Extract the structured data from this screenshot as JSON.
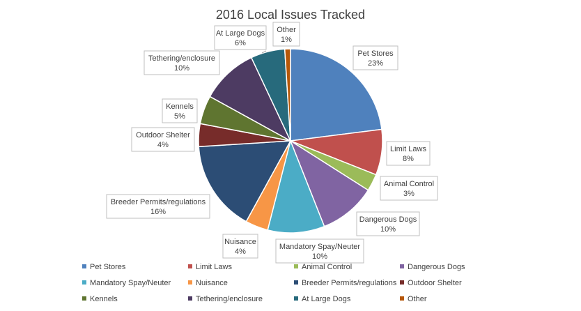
{
  "chart_data": {
    "type": "pie",
    "title": "2016 Local Issues Tracked",
    "legend_position": "bottom",
    "slices": [
      {
        "name": "Pet Stores",
        "value": 23,
        "label": "23%",
        "color": "#4f81bd"
      },
      {
        "name": "Limit Laws",
        "value": 8,
        "label": "8%",
        "color": "#c0504d"
      },
      {
        "name": "Animal Control",
        "value": 3,
        "label": "3%",
        "color": "#9bbb59"
      },
      {
        "name": "Dangerous Dogs",
        "value": 10,
        "label": "10%",
        "color": "#8064a2"
      },
      {
        "name": "Mandatory Spay/Neuter",
        "value": 10,
        "label": "10%",
        "color": "#4bacc6"
      },
      {
        "name": "Nuisance",
        "value": 4,
        "label": "4%",
        "color": "#f79646"
      },
      {
        "name": "Breeder Permits/regulations",
        "value": 16,
        "label": "16%",
        "color": "#2c4d75"
      },
      {
        "name": "Outdoor Shelter",
        "value": 4,
        "label": "4%",
        "color": "#772c2a"
      },
      {
        "name": "Kennels",
        "value": 5,
        "label": "5%",
        "color": "#5f7530"
      },
      {
        "name": "Tethering/enclosure",
        "value": 10,
        "label": "10%",
        "color": "#4d3b62"
      },
      {
        "name": "At Large Dogs",
        "value": 6,
        "label": "6%",
        "color": "#276a7c"
      },
      {
        "name": "Other",
        "value": 1,
        "label": "1%",
        "color": "#b65708"
      }
    ]
  }
}
